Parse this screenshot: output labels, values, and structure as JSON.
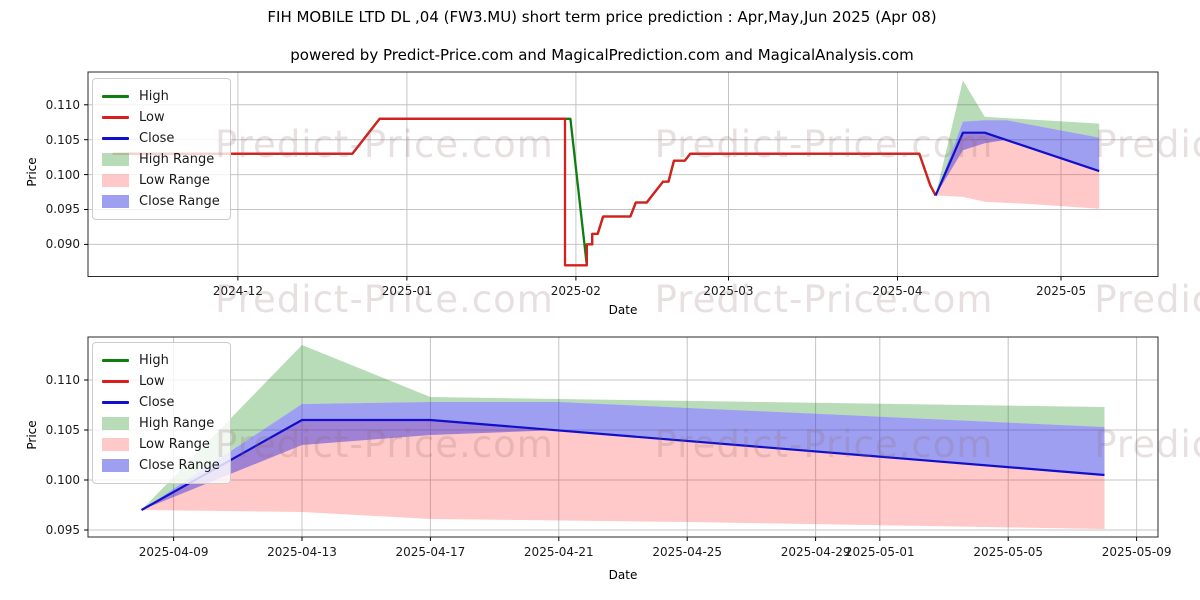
{
  "title": "FIH MOBILE LTD DL ,04 (FW3.MU) short term price prediction : Apr,May,Jun 2025 (Apr 08)",
  "subtitle": "powered by Predict-Price.com and MagicalPrediction.com and MagicalAnalysis.com",
  "watermark": {
    "text": "Predict-Price.com",
    "color": "rgba(140,100,100,0.20)"
  },
  "colors": {
    "high_line": "#0f7d0f",
    "low_line": "#d81e1e",
    "close_line": "#1010cc",
    "high_range_fill": "rgba(0,128,0,0.28)",
    "low_range_fill": "rgba(255,40,40,0.25)",
    "close_range_fill": "rgba(45,45,225,0.46)",
    "grid": "#c4c4c4",
    "spine": "#2a2a2a"
  },
  "legend": {
    "items": [
      {
        "label": "High",
        "swatch": "line",
        "color": "#0f7d0f"
      },
      {
        "label": "Low",
        "swatch": "line",
        "color": "#d81e1e"
      },
      {
        "label": "Close",
        "swatch": "line",
        "color": "#1010cc"
      },
      {
        "label": "High Range",
        "swatch": "patch",
        "color": "rgba(0,128,0,0.28)"
      },
      {
        "label": "Low Range",
        "swatch": "patch",
        "color": "rgba(255,40,40,0.25)"
      },
      {
        "label": "Close Range",
        "swatch": "patch",
        "color": "rgba(45,45,225,0.46)"
      }
    ]
  },
  "chart_data": [
    {
      "type": "line",
      "name": "price-history-with-prediction",
      "xlabel": "Date",
      "ylabel": "Price",
      "grid": true,
      "legend_position": "upper left",
      "xlim": [
        "2024-11-03T12:00:00Z",
        "2025-05-18T19:00:00Z"
      ],
      "ylim": [
        0.0854,
        0.1147
      ],
      "x_ticks": [
        {
          "date": "2024-12-01",
          "label": "2024-12"
        },
        {
          "date": "2025-01-01",
          "label": "2025-01"
        },
        {
          "date": "2025-02-01",
          "label": "2025-02"
        },
        {
          "date": "2025-03-01",
          "label": "2025-03"
        },
        {
          "date": "2025-04-01",
          "label": "2025-04"
        },
        {
          "date": "2025-05-01",
          "label": "2025-05"
        }
      ],
      "y_ticks": [
        {
          "value": 0.09,
          "label": "0.090"
        },
        {
          "value": 0.095,
          "label": "0.095"
        },
        {
          "value": 0.1,
          "label": "0.100"
        },
        {
          "value": 0.105,
          "label": "0.105"
        },
        {
          "value": 0.11,
          "label": "0.110"
        }
      ],
      "series": [
        {
          "name": "High",
          "color": "#0f7d0f",
          "width": 2.3,
          "points": [
            [
              "2024-11-08",
              0.103
            ],
            [
              "2024-12-22",
              0.103
            ],
            [
              "2024-12-27",
              0.108
            ],
            [
              "2025-01-31",
              0.108
            ],
            [
              "2025-02-03",
              0.087
            ],
            [
              "2025-02-03",
              0.09
            ],
            [
              "2025-02-04",
              0.09
            ],
            [
              "2025-02-04",
              0.0915
            ],
            [
              "2025-02-05",
              0.0915
            ],
            [
              "2025-02-06",
              0.094
            ],
            [
              "2025-02-11",
              0.094
            ],
            [
              "2025-02-12",
              0.096
            ],
            [
              "2025-02-14",
              0.096
            ],
            [
              "2025-02-17",
              0.099
            ],
            [
              "2025-02-18",
              0.099
            ],
            [
              "2025-02-19",
              0.102
            ],
            [
              "2025-02-21",
              0.102
            ],
            [
              "2025-02-22",
              0.103
            ],
            [
              "2025-04-05",
              0.103
            ],
            [
              "2025-04-07",
              0.0985
            ],
            [
              "2025-04-08",
              0.097
            ]
          ]
        },
        {
          "name": "Low",
          "color": "#d81e1e",
          "width": 2.3,
          "points": [
            [
              "2024-11-08",
              0.103
            ],
            [
              "2024-12-22",
              0.103
            ],
            [
              "2024-12-27",
              0.108
            ],
            [
              "2025-01-30",
              0.108
            ],
            [
              "2025-01-30",
              0.087
            ],
            [
              "2025-02-03",
              0.087
            ],
            [
              "2025-02-03",
              0.09
            ],
            [
              "2025-02-04",
              0.09
            ],
            [
              "2025-02-04",
              0.0915
            ],
            [
              "2025-02-05",
              0.0915
            ],
            [
              "2025-02-06",
              0.094
            ],
            [
              "2025-02-11",
              0.094
            ],
            [
              "2025-02-12",
              0.096
            ],
            [
              "2025-02-14",
              0.096
            ],
            [
              "2025-02-17",
              0.099
            ],
            [
              "2025-02-18",
              0.099
            ],
            [
              "2025-02-19",
              0.102
            ],
            [
              "2025-02-21",
              0.102
            ],
            [
              "2025-02-22",
              0.103
            ],
            [
              "2025-04-05",
              0.103
            ],
            [
              "2025-04-07",
              0.0985
            ],
            [
              "2025-04-08",
              0.097
            ]
          ]
        },
        {
          "name": "Close",
          "color": "#1010cc",
          "width": 2.2,
          "points": [
            [
              "2025-04-08",
              0.097
            ],
            [
              "2025-04-13",
              0.106
            ],
            [
              "2025-04-17",
              0.106
            ],
            [
              "2025-05-08",
              0.1005
            ]
          ]
        }
      ],
      "bands": [
        {
          "name": "High Range",
          "color": "rgba(0,128,0,0.28)",
          "upper": [
            [
              "2025-04-08",
              0.097
            ],
            [
              "2025-04-13",
              0.1135
            ],
            [
              "2025-04-17",
              0.1083
            ],
            [
              "2025-04-21",
              0.1081
            ],
            [
              "2025-05-08",
              0.1073
            ]
          ],
          "lower": [
            [
              "2025-04-08",
              0.097
            ],
            [
              "2025-04-13",
              0.1076
            ],
            [
              "2025-04-17",
              0.1078
            ],
            [
              "2025-04-21",
              0.1078
            ],
            [
              "2025-05-08",
              0.1053
            ]
          ]
        },
        {
          "name": "Low Range",
          "color": "rgba(255,40,40,0.25)",
          "upper": [
            [
              "2025-04-08",
              0.097
            ],
            [
              "2025-04-13",
              0.106
            ],
            [
              "2025-04-17",
              0.106
            ],
            [
              "2025-05-08",
              0.1005
            ]
          ],
          "lower": [
            [
              "2025-04-08",
              0.097
            ],
            [
              "2025-04-13",
              0.0968
            ],
            [
              "2025-04-17",
              0.0961
            ],
            [
              "2025-04-25",
              0.0958
            ],
            [
              "2025-05-08",
              0.0951
            ]
          ]
        },
        {
          "name": "Close Range",
          "color": "rgba(45,45,225,0.46)",
          "upper": [
            [
              "2025-04-08",
              0.097
            ],
            [
              "2025-04-13",
              0.1076
            ],
            [
              "2025-04-17",
              0.1078
            ],
            [
              "2025-04-21",
              0.1078
            ],
            [
              "2025-05-08",
              0.1053
            ]
          ],
          "lower": [
            [
              "2025-04-08",
              0.097
            ],
            [
              "2025-04-13",
              0.1035
            ],
            [
              "2025-04-17",
              0.1045
            ],
            [
              "2025-04-21",
              0.105
            ],
            [
              "2025-05-08",
              0.1005
            ]
          ]
        }
      ]
    },
    {
      "type": "line",
      "name": "prediction-zoom",
      "xlabel": "Date",
      "ylabel": "Price",
      "grid": true,
      "legend_position": "upper left",
      "xlim": [
        "2025-04-06T08:00:00Z",
        "2025-05-09T16:00:00Z"
      ],
      "ylim": [
        0.0943,
        0.1143
      ],
      "x_ticks": [
        {
          "date": "2025-04-09",
          "label": "2025-04-09"
        },
        {
          "date": "2025-04-13",
          "label": "2025-04-13"
        },
        {
          "date": "2025-04-17",
          "label": "2025-04-17"
        },
        {
          "date": "2025-04-21",
          "label": "2025-04-21"
        },
        {
          "date": "2025-04-25",
          "label": "2025-04-25"
        },
        {
          "date": "2025-04-29",
          "label": "2025-04-29"
        },
        {
          "date": "2025-05-01",
          "label": "2025-05-01"
        },
        {
          "date": "2025-05-05",
          "label": "2025-05-05"
        },
        {
          "date": "2025-05-09",
          "label": "2025-05-09"
        }
      ],
      "y_ticks": [
        {
          "value": 0.095,
          "label": "0.095"
        },
        {
          "value": 0.1,
          "label": "0.100"
        },
        {
          "value": 0.105,
          "label": "0.105"
        },
        {
          "value": 0.11,
          "label": "0.110"
        }
      ],
      "series": [
        {
          "name": "Close",
          "color": "#1010cc",
          "width": 2.2,
          "points": [
            [
              "2025-04-08",
              0.097
            ],
            [
              "2025-04-13",
              0.106
            ],
            [
              "2025-04-17",
              0.106
            ],
            [
              "2025-05-08",
              0.1005
            ]
          ]
        }
      ],
      "bands": [
        {
          "name": "High Range",
          "color": "rgba(0,128,0,0.28)",
          "upper": [
            [
              "2025-04-08",
              0.097
            ],
            [
              "2025-04-13",
              0.1135
            ],
            [
              "2025-04-17",
              0.1083
            ],
            [
              "2025-04-21",
              0.1081
            ],
            [
              "2025-05-08",
              0.1073
            ]
          ],
          "lower": [
            [
              "2025-04-08",
              0.097
            ],
            [
              "2025-04-13",
              0.1076
            ],
            [
              "2025-04-17",
              0.1078
            ],
            [
              "2025-04-21",
              0.1078
            ],
            [
              "2025-05-08",
              0.1053
            ]
          ]
        },
        {
          "name": "Low Range",
          "color": "rgba(255,40,40,0.25)",
          "upper": [
            [
              "2025-04-08",
              0.097
            ],
            [
              "2025-04-13",
              0.106
            ],
            [
              "2025-04-17",
              0.106
            ],
            [
              "2025-05-08",
              0.1005
            ]
          ],
          "lower": [
            [
              "2025-04-08",
              0.097
            ],
            [
              "2025-04-13",
              0.0968
            ],
            [
              "2025-04-17",
              0.0961
            ],
            [
              "2025-04-25",
              0.0958
            ],
            [
              "2025-05-08",
              0.0951
            ]
          ]
        },
        {
          "name": "Close Range",
          "color": "rgba(45,45,225,0.46)",
          "upper": [
            [
              "2025-04-08",
              0.097
            ],
            [
              "2025-04-13",
              0.1076
            ],
            [
              "2025-04-17",
              0.1078
            ],
            [
              "2025-04-21",
              0.1078
            ],
            [
              "2025-05-08",
              0.1053
            ]
          ],
          "lower": [
            [
              "2025-04-08",
              0.097
            ],
            [
              "2025-04-13",
              0.1035
            ],
            [
              "2025-04-17",
              0.1045
            ],
            [
              "2025-04-21",
              0.105
            ],
            [
              "2025-05-08",
              0.1005
            ]
          ]
        }
      ]
    }
  ]
}
